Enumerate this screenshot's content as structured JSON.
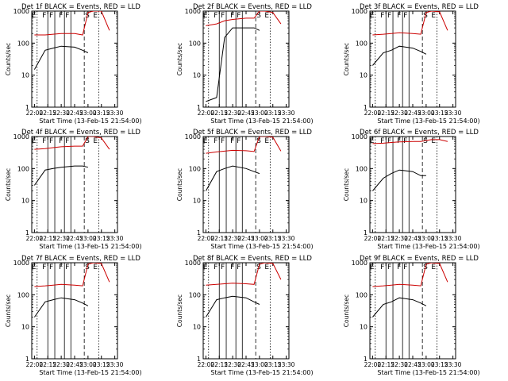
{
  "figure": {
    "xlabel": "Start Time (13-Feb-15 21:54:00)",
    "ylabel": "Counts/sec",
    "x_ticks": [
      "22:00",
      "22:15",
      "22:30",
      "22:45",
      "23:00",
      "23:15",
      "23:30"
    ],
    "y_ticks": [
      "1",
      "10",
      "100",
      "1000"
    ],
    "marker_labels": {
      "eclipse": "E",
      "flare": "F",
      "saa": "S"
    }
  },
  "chart_data": [
    {
      "type": "line",
      "title": "Det 1f BLACK = Events, RED = LLD",
      "yscale": "log",
      "ylim": [
        1,
        1000
      ],
      "events_series": {
        "color": "#000000",
        "x": [
          22.0,
          22.2,
          22.35,
          22.5,
          22.75,
          22.9,
          23.0
        ],
        "y": [
          15,
          60,
          70,
          80,
          75,
          60,
          50
        ],
        "gap_start": 23.0
      },
      "lld_series": {
        "color": "#cc0000",
        "x": [
          22.0,
          22.2,
          22.35,
          22.5,
          22.75,
          22.9,
          23.0,
          23.1,
          23.25,
          23.4
        ],
        "y": [
          180,
          180,
          190,
          200,
          200,
          180,
          900,
          1000,
          1000,
          250
        ]
      },
      "markers": {
        "eclipse": [
          22.05,
          23.2
        ],
        "flare": [
          22.25,
          22.38,
          22.56,
          22.68
        ],
        "saa": [
          22.93
        ]
      }
    },
    {
      "type": "line",
      "title": "Det 2f BLACK = Events, RED = LLD",
      "yscale": "log",
      "ylim": [
        1,
        1000
      ],
      "events_series": {
        "color": "#000000",
        "x": [
          22.0,
          22.2,
          22.35,
          22.5,
          22.75,
          22.9,
          23.0
        ],
        "y": [
          1.5,
          2,
          150,
          300,
          300,
          300,
          250
        ],
        "gap_start": 23.0
      },
      "lld_series": {
        "color": "#cc0000",
        "x": [
          22.0,
          22.2,
          22.35,
          22.5,
          22.75,
          22.9,
          23.0,
          23.1,
          23.25,
          23.4
        ],
        "y": [
          350,
          400,
          500,
          550,
          600,
          600,
          1000,
          1000,
          900,
          400
        ]
      },
      "markers": {
        "eclipse": [
          22.05,
          23.2
        ],
        "flare": [
          22.25,
          22.38,
          22.56,
          22.68
        ],
        "saa": [
          22.93
        ]
      }
    },
    {
      "type": "line",
      "title": "Det 3f BLACK = Events, RED = LLD",
      "yscale": "log",
      "ylim": [
        1,
        1000
      ],
      "events_series": {
        "color": "#000000",
        "x": [
          22.0,
          22.2,
          22.35,
          22.5,
          22.75,
          22.9,
          23.0
        ],
        "y": [
          20,
          50,
          60,
          80,
          70,
          55,
          45
        ],
        "gap_start": 23.0
      },
      "lld_series": {
        "color": "#cc0000",
        "x": [
          22.0,
          22.2,
          22.35,
          22.5,
          22.75,
          22.9,
          23.0,
          23.1,
          23.25,
          23.4
        ],
        "y": [
          180,
          190,
          200,
          210,
          200,
          190,
          900,
          1000,
          950,
          250
        ]
      },
      "markers": {
        "eclipse": [
          22.05,
          23.2
        ],
        "flare": [
          22.25,
          22.38,
          22.56,
          22.68
        ],
        "saa": [
          22.93
        ]
      }
    },
    {
      "type": "line",
      "title": "Det 4f BLACK = Events, RED = LLD",
      "yscale": "log",
      "ylim": [
        1,
        1000
      ],
      "events_series": {
        "color": "#000000",
        "x": [
          22.0,
          22.2,
          22.35,
          22.5,
          22.75,
          22.9,
          23.0
        ],
        "y": [
          30,
          90,
          100,
          110,
          120,
          120,
          110
        ],
        "gap_start": 23.0
      },
      "lld_series": {
        "color": "#cc0000",
        "x": [
          22.0,
          22.2,
          22.35,
          22.5,
          22.75,
          22.9,
          23.0,
          23.1,
          23.25,
          23.4
        ],
        "y": [
          400,
          420,
          450,
          480,
          500,
          500,
          1000,
          1000,
          900,
          400
        ]
      },
      "markers": {
        "eclipse": [
          22.05,
          23.2
        ],
        "flare": [
          22.25,
          22.38,
          22.56,
          22.68
        ],
        "saa": [
          22.93
        ]
      }
    },
    {
      "type": "line",
      "title": "Det 5f BLACK = Events, RED = LLD",
      "yscale": "log",
      "ylim": [
        1,
        1000
      ],
      "events_series": {
        "color": "#000000",
        "x": [
          22.0,
          22.2,
          22.35,
          22.5,
          22.75,
          22.9,
          23.0
        ],
        "y": [
          20,
          80,
          100,
          120,
          100,
          80,
          70
        ],
        "gap_start": 23.0
      },
      "lld_series": {
        "color": "#cc0000",
        "x": [
          22.0,
          22.2,
          22.35,
          22.5,
          22.75,
          22.9,
          23.0,
          23.1,
          23.25,
          23.4
        ],
        "y": [
          300,
          330,
          350,
          370,
          360,
          340,
          1000,
          1000,
          950,
          350
        ]
      },
      "markers": {
        "eclipse": [
          22.05,
          23.2
        ],
        "flare": [
          22.25,
          22.38,
          22.56,
          22.68
        ],
        "saa": [
          22.93
        ]
      }
    },
    {
      "type": "line",
      "title": "Det 6f BLACK = Events, RED = LLD",
      "yscale": "log",
      "ylim": [
        1,
        1000
      ],
      "events_series": {
        "color": "#000000",
        "x": [
          22.0,
          22.2,
          22.35,
          22.5,
          22.75,
          22.9,
          23.0
        ],
        "y": [
          20,
          50,
          70,
          90,
          80,
          60,
          60
        ],
        "gap_start": 23.0
      },
      "lld_series": {
        "color": "#cc0000",
        "x": [
          22.0,
          22.2,
          22.35,
          22.5,
          22.75,
          22.9,
          23.0,
          23.1,
          23.25,
          23.4
        ],
        "y": [
          600,
          620,
          650,
          680,
          700,
          700,
          750,
          800,
          800,
          700
        ]
      },
      "markers": {
        "eclipse": [
          22.05,
          23.2
        ],
        "flare": [
          22.25,
          22.38,
          22.56,
          22.68
        ],
        "saa": [
          22.93
        ]
      }
    },
    {
      "type": "line",
      "title": "Det 7f BLACK = Events, RED = LLD",
      "yscale": "log",
      "ylim": [
        1,
        1000
      ],
      "events_series": {
        "color": "#000000",
        "x": [
          22.0,
          22.2,
          22.35,
          22.5,
          22.75,
          22.9,
          23.0
        ],
        "y": [
          20,
          60,
          70,
          80,
          70,
          55,
          45
        ],
        "gap_start": 23.0
      },
      "lld_series": {
        "color": "#cc0000",
        "x": [
          22.0,
          22.2,
          22.35,
          22.5,
          22.75,
          22.9,
          23.0,
          23.1,
          23.25,
          23.4
        ],
        "y": [
          180,
          190,
          200,
          210,
          200,
          190,
          900,
          1000,
          950,
          250
        ]
      },
      "markers": {
        "eclipse": [
          22.05,
          23.2
        ],
        "flare": [
          22.25,
          22.38,
          22.56,
          22.68
        ],
        "saa": [
          22.93
        ]
      }
    },
    {
      "type": "line",
      "title": "Det 8f BLACK = Events, RED = LLD",
      "yscale": "log",
      "ylim": [
        1,
        1000
      ],
      "events_series": {
        "color": "#000000",
        "x": [
          22.0,
          22.2,
          22.35,
          22.5,
          22.75,
          22.9,
          23.0
        ],
        "y": [
          20,
          70,
          80,
          90,
          80,
          60,
          50
        ],
        "gap_start": 23.0
      },
      "lld_series": {
        "color": "#cc0000",
        "x": [
          22.0,
          22.2,
          22.35,
          22.5,
          22.75,
          22.9,
          23.0,
          23.1,
          23.25,
          23.4
        ],
        "y": [
          200,
          210,
          220,
          230,
          220,
          210,
          900,
          1000,
          950,
          300
        ]
      },
      "markers": {
        "eclipse": [
          22.05,
          23.2
        ],
        "flare": [
          22.25,
          22.38,
          22.56,
          22.68
        ],
        "saa": [
          22.93
        ]
      }
    },
    {
      "type": "line",
      "title": "Det 9f BLACK = Events, RED = LLD",
      "yscale": "log",
      "ylim": [
        1,
        1000
      ],
      "events_series": {
        "color": "#000000",
        "x": [
          22.0,
          22.2,
          22.35,
          22.5,
          22.75,
          22.9,
          23.0
        ],
        "y": [
          20,
          50,
          60,
          80,
          70,
          55,
          45
        ],
        "gap_start": 23.0
      },
      "lld_series": {
        "color": "#cc0000",
        "x": [
          22.0,
          22.2,
          22.35,
          22.5,
          22.75,
          22.9,
          23.0,
          23.1,
          23.25,
          23.4
        ],
        "y": [
          180,
          190,
          200,
          210,
          200,
          190,
          900,
          1000,
          950,
          250
        ]
      },
      "markers": {
        "eclipse": [
          22.05,
          23.2
        ],
        "flare": [
          22.25,
          22.38,
          22.56,
          22.68
        ],
        "saa": [
          22.93
        ]
      }
    }
  ]
}
